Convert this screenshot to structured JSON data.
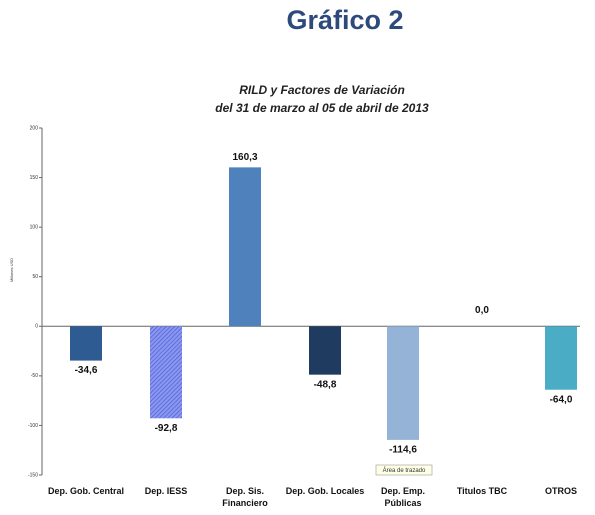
{
  "header": {
    "title": "Gráfico 2"
  },
  "chart_data": {
    "type": "bar",
    "title": "RILD y Factores de Variación",
    "subtitle": "del 31 de marzo al 05 de abril de 2013",
    "y_label": "Millones USD",
    "categories": [
      "Dep. Gob. Central",
      "Dep. IESS",
      "Dep. Sis.\nFinanciero",
      "Dep. Gob. Locales",
      "Dep. Emp.\nPúblicas",
      "Titulos TBC",
      "OTROS"
    ],
    "values": [
      -34.6,
      -92.8,
      160.3,
      -48.8,
      -114.6,
      0,
      -64.0
    ],
    "value_labels": [
      "-34,6",
      "-92,8",
      "160,3",
      "-48,8",
      "-114,6",
      "0,0",
      "-64,0"
    ],
    "colors": [
      "#2e5b92",
      "#7080e6",
      "#4f81bd",
      "#1f3b60",
      "#95b3d7",
      "#4f81bd",
      "#4bacc6"
    ],
    "ylim": [
      -150,
      200
    ],
    "yticks": [
      -150,
      -100,
      -50,
      0,
      50,
      100,
      150,
      200
    ],
    "annotation": "Área de trazado"
  }
}
